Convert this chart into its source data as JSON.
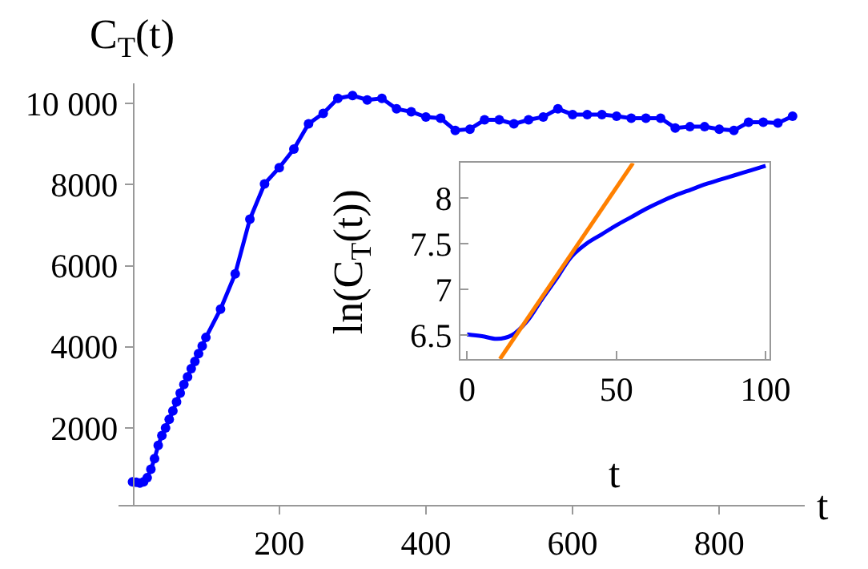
{
  "chart_data": [
    {
      "type": "line",
      "xlabel": "t",
      "ylabel": "C$_{T}$(t)",
      "marker": "circle",
      "line_style": "solid",
      "xlim": [
        -19,
        917
      ],
      "ylim": [
        100,
        10500
      ],
      "xticks": [
        200,
        400,
        600,
        800
      ],
      "yticks": [
        2000,
        4000,
        6000,
        8000,
        {
          "value": 10000,
          "label": "10 000"
        }
      ],
      "series": [
        {
          "color": "#0000ff",
          "x": [
            0,
            5,
            10,
            15,
            20,
            25,
            30,
            35,
            40,
            45,
            50,
            55,
            60,
            65,
            70,
            75,
            80,
            85,
            90,
            95,
            100,
            120,
            140,
            160,
            180,
            200,
            220,
            240,
            260,
            280,
            300,
            320,
            340,
            360,
            380,
            400,
            420,
            440,
            460,
            480,
            500,
            520,
            540,
            560,
            580,
            600,
            620,
            640,
            660,
            680,
            700,
            720,
            740,
            760,
            780,
            800,
            820,
            840,
            860,
            880,
            900
          ],
          "values": [
            670,
            660,
            640,
            670,
            770,
            980,
            1240,
            1570,
            1810,
            2000,
            2210,
            2420,
            2640,
            2860,
            3070,
            3260,
            3460,
            3640,
            3830,
            4020,
            4230,
            4930,
            5800,
            7150,
            8020,
            8420,
            8880,
            9500,
            9760,
            10130,
            10200,
            10090,
            10130,
            9870,
            9800,
            9670,
            9640,
            9340,
            9370,
            9600,
            9600,
            9500,
            9600,
            9670,
            9870,
            9730,
            9730,
            9730,
            9690,
            9640,
            9640,
            9640,
            9400,
            9430,
            9430,
            9370,
            9340,
            9540,
            9540,
            9520,
            9690
          ]
        }
      ]
    },
    {
      "type": "line",
      "xlabel": "t",
      "ylabel": "ln(C$_{T}$(t))",
      "marker": "none",
      "line_style": "solid",
      "xlim": [
        -2.3,
        101.2
      ],
      "ylim": [
        6.24,
        8.38
      ],
      "xticks": [
        0,
        50,
        100
      ],
      "yticks": [
        6.5,
        7,
        7.5,
        8
      ],
      "series": [
        {
          "color": "#0000ff",
          "x": [
            0,
            5,
            10,
            15,
            20,
            25,
            30,
            35,
            40,
            45,
            50,
            55,
            60,
            65,
            70,
            75,
            80,
            85,
            90,
            95,
            100
          ],
          "values": [
            6.51,
            6.49,
            6.46,
            6.5,
            6.65,
            6.89,
            7.12,
            7.36,
            7.5,
            7.6,
            7.7,
            7.79,
            7.88,
            7.96,
            8.03,
            8.09,
            8.15,
            8.2,
            8.25,
            8.3,
            8.35
          ]
        },
        {
          "color": "#ff8000",
          "x": [
            11,
            55.6
          ],
          "values": [
            6.24,
            8.38
          ]
        }
      ]
    }
  ]
}
